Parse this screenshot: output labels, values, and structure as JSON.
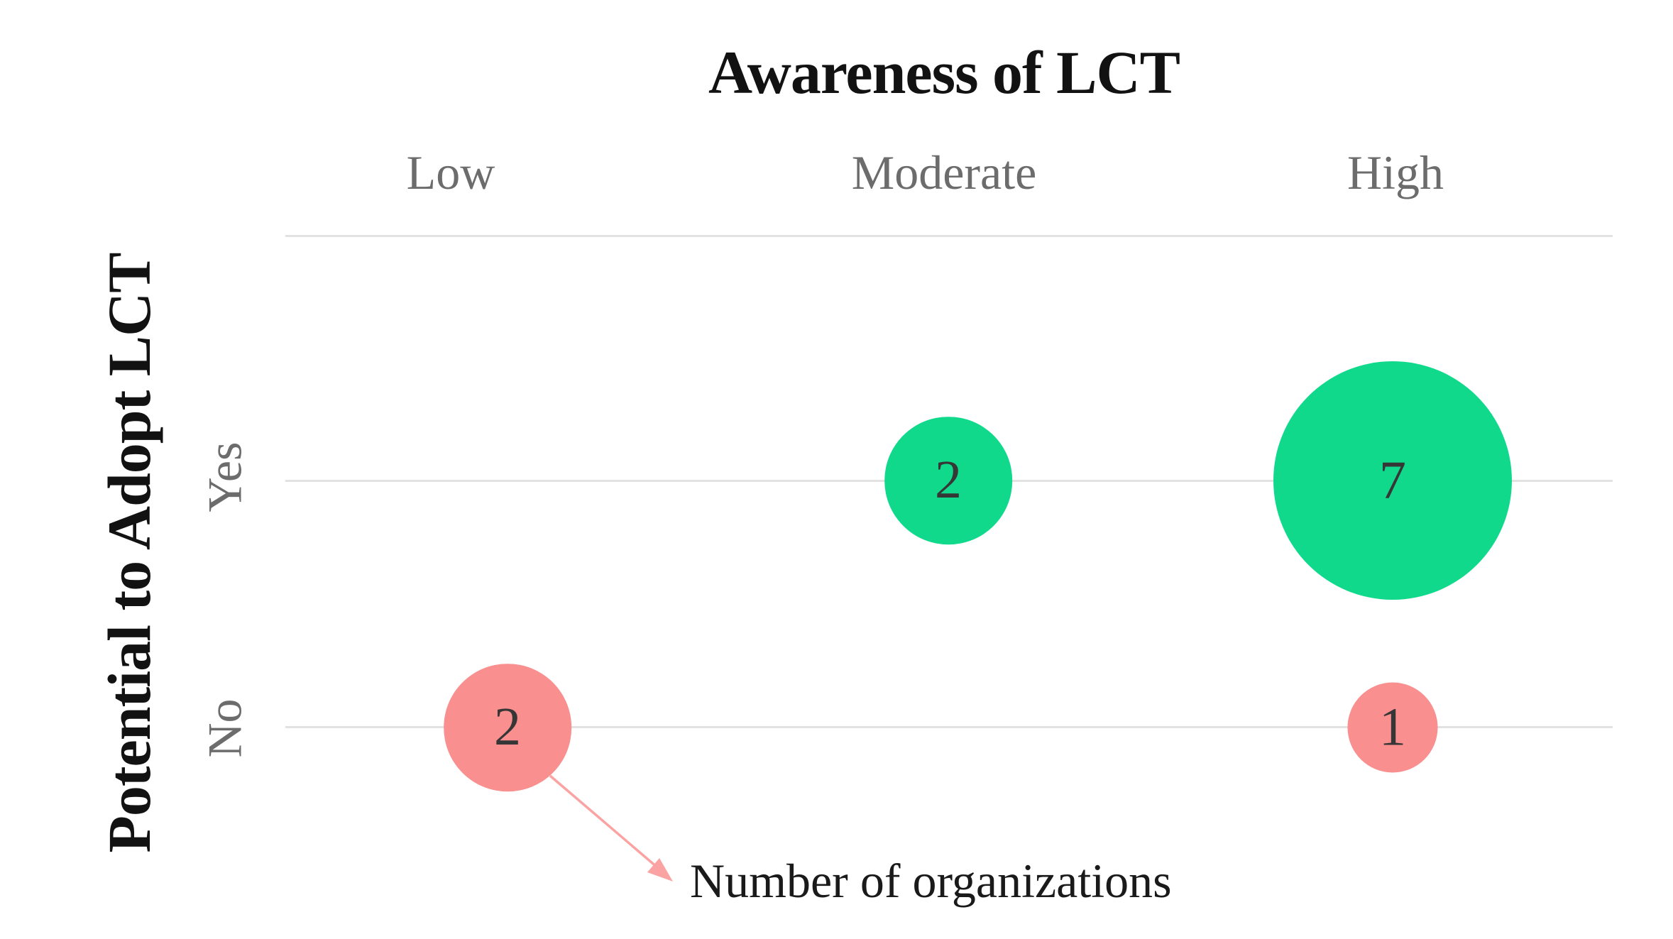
{
  "title": "Awareness of LCT",
  "x_axis": {
    "title": "Awareness of LCT",
    "tick_labels": [
      "Low",
      "Moderate",
      "High"
    ]
  },
  "y_axis": {
    "title": "Potential to Adopt LCT",
    "tick_labels": [
      "Yes",
      "No"
    ]
  },
  "annotation": "Number of organizations",
  "colors": {
    "title": "#121212",
    "tick": "#6c6c6c",
    "grid": "#e2e2e2",
    "yes": "#10d98c",
    "no": "#f98f8f",
    "num": "#363636",
    "ann": "#1a1a1a",
    "arrow": "#fba3a3"
  },
  "chart_data": {
    "type": "scatter",
    "subtype": "bubble-matrix",
    "title": "Awareness of LCT",
    "xlabel": "Awareness of LCT",
    "ylabel": "Potential to Adopt LCT",
    "x_categories": [
      "Low",
      "Moderate",
      "High"
    ],
    "y_categories": [
      "Yes",
      "No"
    ],
    "points": [
      {
        "x": "Moderate",
        "y": "Yes",
        "value": 2
      },
      {
        "x": "High",
        "y": "Yes",
        "value": 7
      },
      {
        "x": "Low",
        "y": "No",
        "value": 2
      },
      {
        "x": "High",
        "y": "No",
        "value": 1
      }
    ],
    "size_label": "Number of organizations",
    "size_encoding": "bubble area proportional to number of organizations",
    "color_encoding": {
      "Yes": "#10d98c",
      "No": "#f98f8f"
    },
    "grid": "horizontal category gridlines only",
    "legend": "none (annotated arrow labels bubble size meaning)"
  }
}
